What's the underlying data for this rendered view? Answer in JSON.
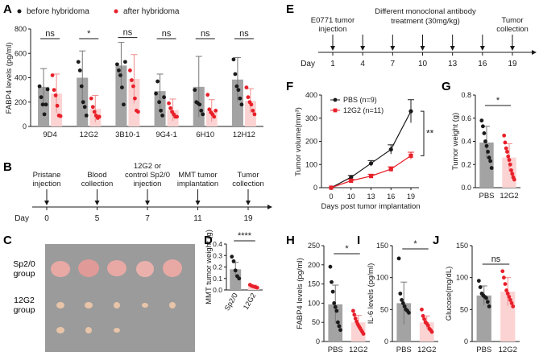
{
  "colors": {
    "gray": "#a3a3a3",
    "pink": "#fbd3d3",
    "red": "#e8202a",
    "black": "#1a1a1a"
  },
  "panels": {
    "A": "A",
    "B": "B",
    "C": "C",
    "D": "D",
    "E": "E",
    "F": "F",
    "G": "G",
    "H": "H",
    "I": "I",
    "J": "J"
  },
  "photo": {
    "row1": "Sp2/0\ngroup",
    "row2": "12G2\ngroup",
    "row1_l1": "Sp2/0",
    "row1_l2": "group",
    "row2_l1": "12G2",
    "row2_l2": "group"
  },
  "chart_data": [
    {
      "id": "A",
      "type": "bar",
      "ylabel": "FABP4 levels (pg/ml)",
      "ylim": [
        0,
        800
      ],
      "yticks": [
        "0",
        "200",
        "400",
        "600",
        "800"
      ],
      "legend": [
        "before hybridoma",
        "after hybridoma"
      ],
      "categories": [
        "9D4",
        "12G2",
        "3B10-1",
        "9G4-1",
        "6H10",
        "12H12"
      ],
      "series": [
        {
          "name": "before hybridoma",
          "values": [
            325,
            400,
            500,
            290,
            325,
            385
          ],
          "err": [
            150,
            220,
            190,
            140,
            250,
            180
          ],
          "points": [
            [
              330,
              240,
              180,
              100,
              180,
              305
            ],
            [
              530,
              460,
              330,
              200,
              160,
              90
            ],
            [
              510,
              460,
              420,
              320,
              180,
              530
            ],
            [
              270,
              370,
              200,
              130,
              90,
              240
            ],
            [
              300,
              200,
              190,
              180,
              130,
              100
            ],
            [
              550,
              430,
              330,
              300,
              230,
              180
            ]
          ]
        },
        {
          "name": "after hybridoma",
          "values": [
            270,
            145,
            390,
            135,
            130,
            210
          ],
          "err": [
            160,
            110,
            200,
            90,
            90,
            100
          ],
          "points": [
            [
              420,
              300,
              255,
              170,
              90,
              85
            ],
            [
              230,
              160,
              120,
              90,
              70,
              80
            ],
            [
              460,
              380,
              330,
              230,
              130,
              120
            ],
            [
              190,
              150,
              120,
              100,
              80,
              80
            ],
            [
              260,
              140,
              115,
              100,
              80,
              130
            ],
            [
              320,
              240,
              200,
              180,
              130,
              100
            ]
          ]
        }
      ],
      "annotations": [
        "ns",
        "*",
        "ns",
        "ns",
        "ns",
        "ns"
      ]
    },
    {
      "id": "D",
      "type": "bar",
      "ylabel": "MMT tumor weight (g)",
      "ylim": [
        0,
        0.4
      ],
      "yticks": [
        "0.0",
        "0.1",
        "0.2",
        "0.3",
        "0.4"
      ],
      "categories": [
        "Sp2/0",
        "12G2"
      ],
      "values": [
        0.18,
        0.032
      ],
      "err": [
        0.06,
        0.01
      ],
      "points": [
        [
          0.29,
          0.25,
          0.17,
          0.12,
          0.1
        ],
        [
          0.045,
          0.035,
          0.03,
          0.025,
          0.02
        ]
      ],
      "annotations": [
        "****"
      ]
    },
    {
      "id": "F",
      "type": "line",
      "ylabel": "Tumor volume(mm³)",
      "xlabel": "Days post tumor implantation",
      "x": [
        "0",
        "10",
        "13",
        "16",
        "19"
      ],
      "ylim": [
        0,
        400
      ],
      "yticks": [
        "0",
        "100",
        "200",
        "300",
        "400"
      ],
      "series": [
        {
          "name": "PBS (n=9)",
          "values": [
            0,
            45,
            105,
            165,
            330
          ],
          "err": [
            0,
            8,
            12,
            20,
            50
          ]
        },
        {
          "name": "12G2 (n=11)",
          "values": [
            0,
            30,
            50,
            80,
            138
          ],
          "err": [
            0,
            6,
            8,
            10,
            15
          ]
        }
      ],
      "annotations": [
        "**"
      ]
    },
    {
      "id": "G",
      "type": "bar",
      "ylabel": "Tumor weight (g)",
      "ylim": [
        0,
        0.8
      ],
      "yticks": [
        "0.0",
        "0.2",
        "0.4",
        "0.6",
        "0.8"
      ],
      "categories": [
        "PBS",
        "12G2"
      ],
      "values": [
        0.39,
        0.26
      ],
      "err": [
        0.14,
        0.12
      ],
      "points": [
        [
          0.58,
          0.53,
          0.47,
          0.4,
          0.36,
          0.31,
          0.26,
          0.23,
          0.17
        ],
        [
          0.45,
          0.39,
          0.34,
          0.31,
          0.27,
          0.24,
          0.2,
          0.15,
          0.12,
          0.09,
          0.07
        ]
      ],
      "annotations": [
        "*"
      ]
    },
    {
      "id": "H",
      "type": "bar",
      "ylabel": "FABP4 levels (pg/ml)",
      "ylim": [
        0,
        250
      ],
      "yticks": [
        "0",
        "50",
        "100",
        "150",
        "200",
        "250"
      ],
      "categories": [
        "PBS",
        "12G2"
      ],
      "values": [
        97,
        50
      ],
      "err": [
        50,
        18
      ],
      "points": [
        [
          195,
          155,
          130,
          100,
          90,
          80,
          50,
          40,
          30
        ],
        [
          80,
          70,
          60,
          52,
          45,
          40,
          35,
          30,
          25,
          20
        ]
      ],
      "annotations": [
        "*"
      ]
    },
    {
      "id": "I",
      "type": "bar",
      "ylabel": "IL-6 levels (pg/ml)",
      "ylim": [
        0,
        150
      ],
      "yticks": [
        "0",
        "50",
        "100",
        "150"
      ],
      "categories": [
        "PBS",
        "12G2"
      ],
      "values": [
        60,
        30
      ],
      "err": [
        33,
        10
      ],
      "points": [
        [
          130,
          75,
          65,
          60,
          55,
          50,
          48,
          45
        ],
        [
          50,
          40,
          35,
          30,
          28,
          25,
          20,
          18,
          15
        ]
      ],
      "annotations": [
        "*"
      ]
    },
    {
      "id": "J",
      "type": "bar",
      "ylabel": "Glucose(mg/dL)",
      "ylim": [
        0,
        150
      ],
      "yticks": [
        "0",
        "50",
        "100",
        "150"
      ],
      "categories": [
        "PBS",
        "12G2"
      ],
      "values": [
        72,
        78
      ],
      "err": [
        15,
        22
      ],
      "points": [
        [
          95,
          85,
          75,
          72,
          70,
          68,
          62,
          55
        ],
        [
          110,
          100,
          90,
          80,
          75,
          70,
          65,
          60,
          55
        ]
      ],
      "annotations": [
        "ns"
      ]
    }
  ],
  "timelines": [
    {
      "id": "B",
      "axis_label": "Day",
      "ticks": [
        "0",
        "5",
        "7",
        "11",
        "19"
      ],
      "events": [
        "Pristane\ninjection",
        "Blood\ncollection",
        "12G2 or\ncontrol Sp2/0\ninjection",
        "MMT tumor\nimplantation",
        "Tumor\ncollection"
      ]
    },
    {
      "id": "E",
      "axis_label": "Day",
      "ticks": [
        "1",
        "4",
        "7",
        "10",
        "13",
        "16",
        "19"
      ],
      "event_first": "E0771 tumor\ninjection",
      "event_middle": "Different monoclonal antibody\ntreatment (30mg/kg)",
      "event_last": "Tumor\ncollection"
    }
  ]
}
